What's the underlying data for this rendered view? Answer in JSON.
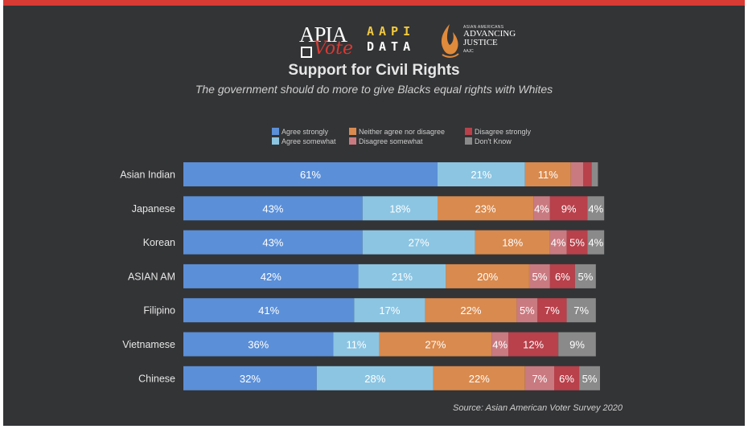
{
  "logos": {
    "apia": {
      "name": "APIA",
      "sub": "Vote"
    },
    "aapi_data": {
      "line1": "AAPI",
      "line2": "DATA"
    },
    "aajc": {
      "top": "ASIAN AMERICANS",
      "name_line1": "ADVANCING",
      "name_line2": "JUSTICE",
      "abbr": "AAJC"
    }
  },
  "source": "Source: Asian American Voter Survey 2020",
  "colors": {
    "background": "#333436",
    "top_bar": "#d83a34",
    "agree_strongly": "#5b8fd8",
    "agree_somewhat": "#8cc5e2",
    "neither": "#d98a4e",
    "disagree_somewhat": "#c97a80",
    "disagree_strongly": "#b8414b",
    "dont_know": "#8a8a8a"
  },
  "chart_data": {
    "type": "bar",
    "orientation": "horizontal",
    "stacked": true,
    "title": "Support for Civil Rights",
    "subtitle": "The government should do more to give Blacks equal rights with Whites",
    "categories": [
      "Asian Indian",
      "Japanese",
      "Korean",
      "ASIAN AM",
      "Filipino",
      "Vietnamese",
      "Chinese"
    ],
    "xlim": [
      0,
      100
    ],
    "legend_position": "top",
    "series": [
      {
        "name": "Agree strongly",
        "color_key": "agree_strongly",
        "values": [
          61,
          43,
          43,
          42,
          41,
          36,
          32
        ],
        "labels": [
          "61%",
          "43%",
          "43%",
          "42%",
          "41%",
          "36%",
          "32%"
        ]
      },
      {
        "name": "Agree somewhat",
        "color_key": "agree_somewhat",
        "values": [
          21,
          18,
          27,
          21,
          17,
          11,
          28
        ],
        "labels": [
          "21%",
          "18%",
          "27%",
          "21%",
          "17%",
          "11%",
          "28%"
        ]
      },
      {
        "name": "Neither agree nor disagree",
        "color_key": "neither",
        "values": [
          11,
          23,
          18,
          20,
          22,
          27,
          22
        ],
        "labels": [
          "11%",
          "23%",
          "18%",
          "20%",
          "22%",
          "27%",
          "22%"
        ]
      },
      {
        "name": "Disagree somewhat",
        "color_key": "disagree_somewhat",
        "values": [
          3,
          4,
          4,
          5,
          5,
          4,
          7
        ],
        "labels": [
          "",
          "4%",
          "4%",
          "5%",
          "5%",
          "4%",
          "7%"
        ]
      },
      {
        "name": "Disagree strongly",
        "color_key": "disagree_strongly",
        "values": [
          2,
          9,
          5,
          6,
          7,
          12,
          6
        ],
        "labels": [
          "",
          "9%",
          "5%",
          "6%",
          "7%",
          "12%",
          "6%"
        ]
      },
      {
        "name": "Don't Know",
        "color_key": "dont_know",
        "values": [
          1.5,
          4,
          4,
          5,
          7,
          9,
          5
        ],
        "labels": [
          "",
          "4%",
          "4%",
          "5%",
          "7%",
          "9%",
          "5%"
        ]
      }
    ]
  }
}
